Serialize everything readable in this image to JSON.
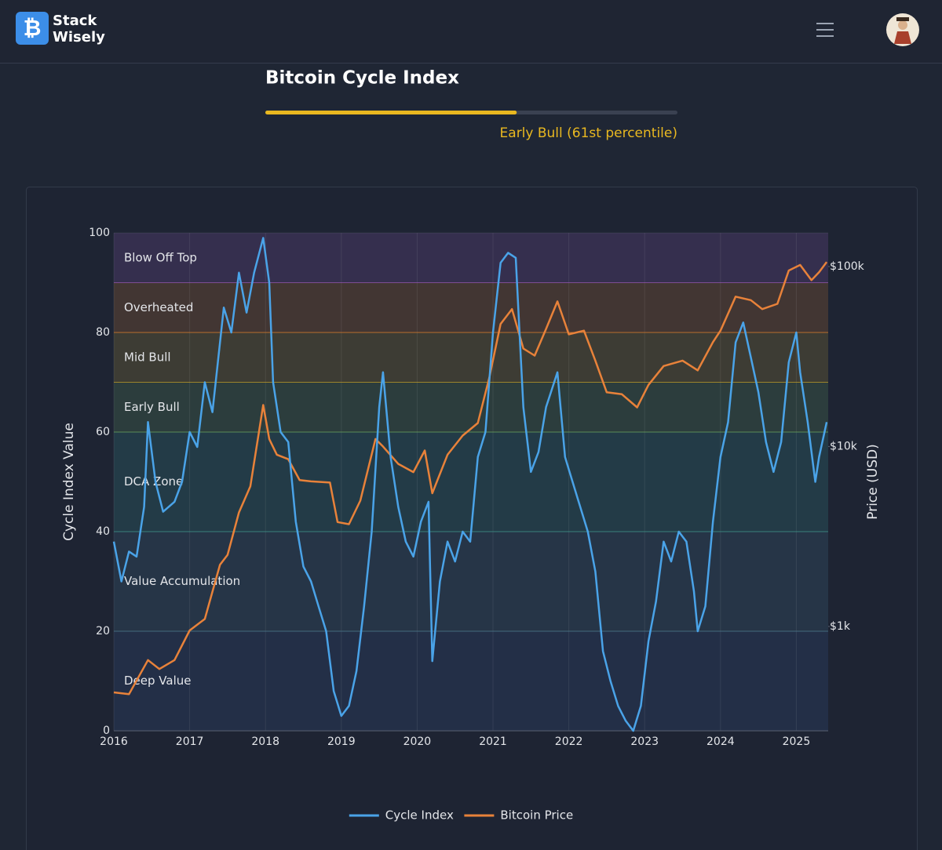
{
  "header": {
    "brand_top": "Stack",
    "brand_bottom": "Wisely"
  },
  "index_header": {
    "title": "Bitcoin Cycle Index",
    "progress": 61,
    "progress_range": [
      0,
      100
    ],
    "status": "Early Bull (61st percentile)"
  },
  "chart_data": {
    "type": "line",
    "y_label": "Cycle Index Value",
    "y2_label": "Price (USD)",
    "xlim": [
      2016,
      2025.42
    ],
    "xticks": [
      2016,
      2017,
      2018,
      2019,
      2020,
      2021,
      2022,
      2023,
      2024,
      2025
    ],
    "ylim": [
      0,
      100
    ],
    "yticks": [
      0,
      20,
      40,
      60,
      80,
      100
    ],
    "y2lim": [
      263,
      153800
    ],
    "y2_scale": "log",
    "y2ticks": [
      {
        "value": 1000,
        "label": "$1k"
      },
      {
        "value": 10000,
        "label": "$10k"
      },
      {
        "value": 100000,
        "label": "$100k"
      }
    ],
    "grid": true,
    "legend": "bottom",
    "zones": [
      {
        "name": "Deep Value",
        "from": 0,
        "to": 20,
        "color": "#3a5a8f"
      },
      {
        "name": "Value Accumulation",
        "from": 20,
        "to": 40,
        "color": "#4a7a90"
      },
      {
        "name": "DCA Zone",
        "from": 40,
        "to": 60,
        "color": "#3a9a8f"
      },
      {
        "name": "Early Bull",
        "from": 60,
        "to": 70,
        "color": "#6aa85a"
      },
      {
        "name": "Mid Bull",
        "from": 70,
        "to": 80,
        "color": "#c9a227"
      },
      {
        "name": "Overheated",
        "from": 80,
        "to": 90,
        "color": "#e67e22"
      },
      {
        "name": "Blow Off Top",
        "from": 90,
        "to": 100,
        "color": "#9b59b6"
      }
    ],
    "series": [
      {
        "name": "Cycle Index",
        "color": "#4aa3e8",
        "x": [
          2016.0,
          2016.1,
          2016.2,
          2016.3,
          2016.4,
          2016.45,
          2016.55,
          2016.65,
          2016.8,
          2016.9,
          2017.0,
          2017.1,
          2017.2,
          2017.3,
          2017.45,
          2017.55,
          2017.65,
          2017.75,
          2017.85,
          2017.97,
          2018.05,
          2018.1,
          2018.2,
          2018.3,
          2018.4,
          2018.5,
          2018.6,
          2018.7,
          2018.8,
          2018.9,
          2019.0,
          2019.1,
          2019.2,
          2019.3,
          2019.4,
          2019.5,
          2019.55,
          2019.65,
          2019.75,
          2019.85,
          2019.95,
          2020.05,
          2020.15,
          2020.2,
          2020.3,
          2020.4,
          2020.5,
          2020.6,
          2020.7,
          2020.8,
          2020.9,
          2021.0,
          2021.1,
          2021.2,
          2021.3,
          2021.35,
          2021.4,
          2021.5,
          2021.6,
          2021.7,
          2021.85,
          2021.95,
          2022.05,
          2022.15,
          2022.25,
          2022.35,
          2022.45,
          2022.55,
          2022.65,
          2022.75,
          2022.85,
          2022.95,
          2023.05,
          2023.15,
          2023.25,
          2023.35,
          2023.45,
          2023.55,
          2023.65,
          2023.7,
          2023.8,
          2023.9,
          2024.0,
          2024.1,
          2024.2,
          2024.3,
          2024.4,
          2024.5,
          2024.6,
          2024.7,
          2024.8,
          2024.9,
          2025.0,
          2025.05,
          2025.15,
          2025.25,
          2025.3,
          2025.4
        ],
        "values": [
          38,
          30,
          36,
          35,
          45,
          62,
          50,
          44,
          46,
          50,
          60,
          57,
          70,
          64,
          85,
          80,
          92,
          84,
          92,
          99,
          90,
          70,
          60,
          58,
          42,
          33,
          30,
          25,
          20,
          8,
          3,
          5,
          12,
          25,
          40,
          65,
          72,
          55,
          45,
          38,
          35,
          42,
          46,
          14,
          30,
          38,
          34,
          40,
          38,
          55,
          60,
          80,
          94,
          96,
          95,
          80,
          65,
          52,
          56,
          65,
          72,
          55,
          50,
          45,
          40,
          32,
          16,
          10,
          5,
          2,
          0,
          5,
          18,
          26,
          38,
          34,
          40,
          38,
          28,
          20,
          25,
          42,
          55,
          62,
          78,
          82,
          75,
          68,
          58,
          52,
          58,
          74,
          80,
          72,
          62,
          50,
          55,
          62
        ]
      },
      {
        "name": "Bitcoin Price",
        "color": "#e8823a",
        "axis": "y2",
        "x": [
          2016.0,
          2016.2,
          2016.45,
          2016.6,
          2016.8,
          2017.0,
          2017.2,
          2017.4,
          2017.5,
          2017.65,
          2017.8,
          2017.97,
          2018.05,
          2018.15,
          2018.3,
          2018.45,
          2018.6,
          2018.85,
          2018.95,
          2019.1,
          2019.25,
          2019.45,
          2019.55,
          2019.75,
          2019.95,
          2020.1,
          2020.2,
          2020.4,
          2020.6,
          2020.8,
          2020.95,
          2021.1,
          2021.25,
          2021.4,
          2021.55,
          2021.7,
          2021.85,
          2022.0,
          2022.2,
          2022.35,
          2022.5,
          2022.7,
          2022.9,
          2023.05,
          2023.25,
          2023.5,
          2023.7,
          2023.9,
          2024.0,
          2024.2,
          2024.4,
          2024.55,
          2024.75,
          2024.9,
          2025.05,
          2025.2,
          2025.3,
          2025.4
        ],
        "values": [
          430,
          420,
          650,
          580,
          650,
          950,
          1100,
          2200,
          2500,
          4300,
          6000,
          17000,
          11000,
          9000,
          8500,
          6500,
          6400,
          6300,
          3800,
          3700,
          5000,
          11000,
          10000,
          8000,
          7200,
          9500,
          5500,
          9000,
          11500,
          13500,
          24000,
          48000,
          58000,
          35000,
          32000,
          45000,
          64000,
          42000,
          44000,
          30000,
          20000,
          19500,
          16500,
          22000,
          28000,
          30000,
          26500,
          38000,
          44000,
          68000,
          65000,
          58000,
          62000,
          95000,
          102000,
          84000,
          93000,
          106000
        ]
      }
    ]
  }
}
